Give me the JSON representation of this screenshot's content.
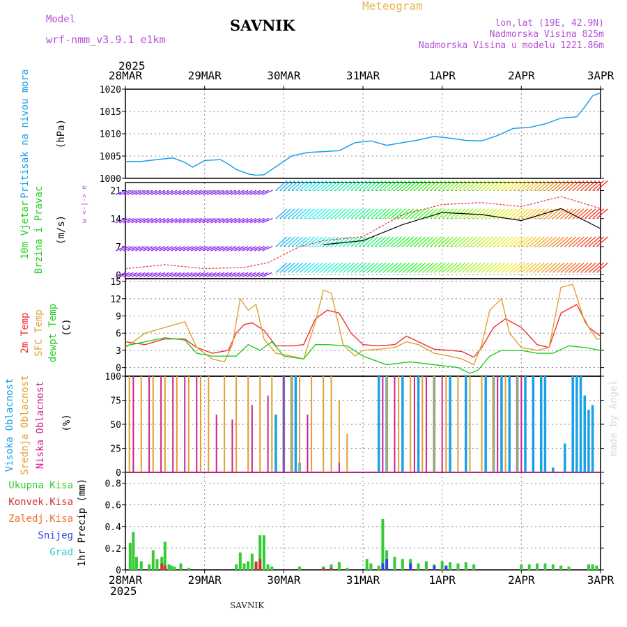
{
  "header": {
    "model_label": "Model",
    "model_name": "wrf-nmm_v3.9.1 e1km",
    "station": "SAVNIK",
    "chart_kind": "Meteogram",
    "lonlat": "lon,lat (19E, 42.9N)",
    "altitude": "Nadmorska Visina 825m",
    "model_altitude": "Nadmorska Visina u modelu 1221.86m",
    "year_top": "2025",
    "year_bottom": "2025",
    "footer_station": "SAVNIK",
    "watermark": "made by Angel"
  },
  "colors": {
    "pressure": "#1aa0e8",
    "wind_green": "#22cc22",
    "temp_2m": "#f03030",
    "temp_sfc": "#e0a030",
    "dewpoint": "#22cc22",
    "cloud_high": "#1aa0e8",
    "cloud_mid": "#e0a030",
    "cloud_low": "#d0208a",
    "precip_total": "#33cc33",
    "precip_conv": "#cc3333",
    "precip_frz": "#f07030",
    "precip_snow": "#3344dd",
    "precip_hail": "#33cccc",
    "purple": "#b84fd8",
    "grid": "#888888"
  },
  "chart_data": [
    {
      "type": "line",
      "panel": "pressure",
      "ylabel_lines": [
        "Pritisak na nivou mora"
      ],
      "unit": "(hPa)",
      "x_ticks": [
        "28MAR",
        "29MAR",
        "30MAR",
        "31MAR",
        "1APR",
        "2APR",
        "3APR"
      ],
      "ylim": [
        1000,
        1020
      ],
      "y_ticks": [
        1000,
        1005,
        1010,
        1015,
        1020
      ],
      "grid": true,
      "series": [
        {
          "color_key": "pressure",
          "x": [
            0,
            0.2,
            0.4,
            0.6,
            0.75,
            0.85,
            1.0,
            1.2,
            1.3,
            1.4,
            1.55,
            1.65,
            1.75,
            1.9,
            2.1,
            2.3,
            2.5,
            2.7,
            2.9,
            3.1,
            3.3,
            3.5,
            3.7,
            3.9,
            4.1,
            4.3,
            4.5,
            4.7,
            4.9,
            5.1,
            5.3,
            5.5,
            5.7,
            5.8,
            5.9,
            6.0
          ],
          "y": [
            1003.8,
            1003.8,
            1004.2,
            1004.6,
            1003.6,
            1002.5,
            1004.0,
            1004.2,
            1003.2,
            1002.0,
            1001.0,
            1000.7,
            1000.8,
            1002.6,
            1005.0,
            1005.8,
            1006.0,
            1006.2,
            1008.0,
            1008.4,
            1007.4,
            1008.0,
            1008.6,
            1009.4,
            1009.0,
            1008.5,
            1008.4,
            1009.6,
            1011.2,
            1011.4,
            1012.2,
            1013.5,
            1013.8,
            1016.0,
            1018.5,
            1019.2
          ]
        }
      ]
    },
    {
      "type": "line",
      "panel": "wind",
      "ylabel_lines": [
        "10m Vjetar",
        "Brzina i Pravac"
      ],
      "unit": "(m/s)",
      "direction_legend": "w <-|-> e",
      "ylim": [
        -1,
        23
      ],
      "y_ticks": [
        0,
        7,
        14,
        21
      ],
      "grid": true,
      "series": [
        {
          "name": "",
          "color_key": "purple",
          "x": [
            0,
            0.5,
            1.0,
            1.5,
            1.8,
            2.2,
            2.5,
            3.0,
            3.5,
            4.0,
            4.5,
            5.0,
            5.5,
            6.0
          ],
          "y": [
            1.5,
            2.5,
            1.5,
            1.8,
            3.0,
            7.0,
            8.5,
            9.5,
            15.0,
            17.5,
            18.0,
            17.0,
            19.5,
            16.5
          ]
        },
        {
          "name": "",
          "color_key": "pressure",
          "x": [
            2.5,
            3.0,
            3.5,
            4.0,
            4.5,
            5.0,
            5.5,
            6.0
          ],
          "y": [
            7.5,
            8.5,
            12.5,
            15.5,
            15.0,
            13.5,
            16.5,
            11.5
          ]
        }
      ]
    },
    {
      "type": "line",
      "panel": "temperature",
      "legend_lines": [
        "2m Temp",
        "SFC Temp",
        "dewpt Temp"
      ],
      "unit": "(C)",
      "ylim": [
        -1.5,
        15.5
      ],
      "y_ticks": [
        0,
        3,
        6,
        9,
        12,
        15
      ],
      "grid": true,
      "series": [
        {
          "name": "2m Temp",
          "color_key": "temp_2m",
          "x": [
            0,
            0.25,
            0.5,
            0.75,
            0.9,
            1.1,
            1.3,
            1.4,
            1.5,
            1.6,
            1.75,
            1.9,
            2.1,
            2.25,
            2.4,
            2.55,
            2.7,
            2.85,
            3.0,
            3.2,
            3.4,
            3.55,
            3.7,
            3.9,
            4.1,
            4.25,
            4.4,
            4.5,
            4.65,
            4.8,
            5.0,
            5.2,
            5.35,
            5.5,
            5.7,
            5.85,
            6.0
          ],
          "y": [
            4.5,
            4.0,
            5.0,
            5.0,
            3.5,
            2.5,
            3.0,
            6.0,
            7.5,
            7.8,
            6.5,
            3.8,
            3.8,
            4.0,
            8.5,
            10.0,
            9.5,
            6.0,
            4.0,
            3.8,
            4.0,
            5.5,
            4.5,
            3.2,
            3.0,
            2.8,
            1.8,
            3.5,
            7.0,
            8.5,
            7.0,
            4.0,
            3.5,
            9.5,
            11.0,
            7.0,
            5.5
          ]
        },
        {
          "name": "SFC Temp",
          "color_key": "temp_sfc",
          "x": [
            0,
            0.25,
            0.5,
            0.75,
            0.9,
            1.1,
            1.25,
            1.35,
            1.45,
            1.55,
            1.65,
            1.75,
            1.9,
            2.1,
            2.25,
            2.4,
            2.5,
            2.6,
            2.75,
            2.9,
            3.0,
            3.2,
            3.4,
            3.55,
            3.7,
            3.9,
            4.1,
            4.25,
            4.4,
            4.5,
            4.6,
            4.75,
            4.85,
            5.0,
            5.2,
            5.35,
            5.5,
            5.65,
            5.8,
            5.95,
            6.0
          ],
          "y": [
            3.5,
            6.0,
            7.0,
            8.0,
            3.5,
            1.5,
            1.0,
            4.0,
            12.0,
            10.0,
            11.0,
            5.0,
            2.5,
            2.0,
            1.5,
            8.0,
            13.5,
            13.0,
            4.0,
            2.0,
            3.0,
            3.2,
            3.5,
            4.5,
            4.0,
            2.5,
            2.0,
            1.5,
            0.5,
            4.0,
            10.0,
            12.0,
            6.0,
            3.5,
            3.0,
            3.5,
            14.0,
            14.5,
            8.0,
            5.0,
            5.0
          ]
        },
        {
          "name": "dewpt Temp",
          "color_key": "dewpoint",
          "x": [
            0,
            0.25,
            0.5,
            0.75,
            0.9,
            1.1,
            1.4,
            1.55,
            1.7,
            1.85,
            2.0,
            2.25,
            2.4,
            2.55,
            2.8,
            3.0,
            3.3,
            3.6,
            3.9,
            4.2,
            4.35,
            4.45,
            4.6,
            4.75,
            5.0,
            5.2,
            5.4,
            5.6,
            5.8,
            6.0
          ],
          "y": [
            3.8,
            4.5,
            5.2,
            4.8,
            2.5,
            2.0,
            2.0,
            4.0,
            3.0,
            4.5,
            2.0,
            1.5,
            4.0,
            4.0,
            3.8,
            2.0,
            0.5,
            1.0,
            0.5,
            0.0,
            -1.0,
            -0.5,
            2.0,
            3.0,
            3.0,
            2.5,
            2.5,
            3.8,
            3.5,
            3.0
          ]
        }
      ]
    },
    {
      "type": "bar",
      "panel": "clouds",
      "legend_lines": [
        "Visoka Oblacnost",
        "Srednja Oblacnost",
        "Niska Oblacnost"
      ],
      "unit": "(%)",
      "ylim": [
        0,
        100
      ],
      "y_ticks": [
        0,
        25,
        50,
        75,
        100
      ],
      "grid": true,
      "series": [
        {
          "name": "Visoka Oblacnost",
          "color_key": "cloud_high",
          "x": [
            1.9,
            2.0,
            2.1,
            2.15,
            2.2,
            3.2,
            3.3,
            3.5,
            3.7,
            3.9,
            4.1,
            4.3,
            4.55,
            4.65,
            4.75,
            4.85,
            4.95,
            5.05,
            5.15,
            5.25,
            5.3,
            5.4,
            5.55,
            5.65,
            5.7,
            5.75,
            5.8,
            5.85,
            5.9
          ],
          "values": [
            60,
            100,
            100,
            100,
            10,
            100,
            100,
            100,
            100,
            100,
            100,
            100,
            100,
            100,
            100,
            100,
            100,
            100,
            100,
            100,
            100,
            5,
            30,
            100,
            100,
            100,
            80,
            65,
            70
          ]
        },
        {
          "name": "Srednja Oblacnost",
          "color_key": "cloud_mid",
          "x": [
            0.05,
            0.2,
            0.35,
            0.5,
            0.65,
            0.8,
            0.95,
            1.05,
            1.25,
            1.4,
            1.55,
            1.7,
            1.85,
            2.0,
            2.1,
            2.2,
            2.35,
            2.5,
            2.6,
            2.7,
            2.8,
            3.3,
            3.45,
            3.6,
            3.75,
            3.9,
            4.05,
            4.2,
            4.35,
            4.5,
            4.65,
            4.8,
            4.95
          ],
          "values": [
            100,
            100,
            100,
            100,
            100,
            100,
            100,
            100,
            100,
            100,
            100,
            100,
            100,
            100,
            100,
            100,
            100,
            100,
            100,
            75,
            40,
            100,
            100,
            100,
            100,
            100,
            100,
            100,
            100,
            100,
            100,
            100,
            100
          ]
        },
        {
          "name": "Niska Oblacnost",
          "color_key": "cloud_low",
          "x": [
            0.1,
            0.3,
            0.45,
            0.6,
            0.75,
            0.9,
            1.15,
            1.35,
            1.6,
            1.8,
            2.0,
            2.3,
            2.7,
            3.25,
            3.4,
            3.65,
            3.8,
            4.0,
            4.7,
            5.0
          ],
          "values": [
            100,
            100,
            100,
            100,
            100,
            100,
            60,
            55,
            70,
            80,
            100,
            60,
            10,
            100,
            100,
            100,
            100,
            100,
            100,
            100
          ]
        }
      ]
    },
    {
      "type": "bar",
      "panel": "precip",
      "legend_lines": [
        "Ukupna Kisa",
        "Konvek.Kisa",
        "Zaledj.Kisa",
        "Snijeg",
        "Grad"
      ],
      "unit": "1hr Precip (mm)",
      "ylim": [
        0,
        0.9
      ],
      "y_ticks": [
        0,
        0.2,
        0.4,
        0.6,
        0.8
      ],
      "grid": true,
      "series": [
        {
          "name": "Ukupna Kisa",
          "color_key": "precip_total",
          "x": [
            0.06,
            0.1,
            0.14,
            0.2,
            0.3,
            0.35,
            0.4,
            0.46,
            0.5,
            0.55,
            0.58,
            0.62,
            0.7,
            0.8,
            1.4,
            1.45,
            1.5,
            1.55,
            1.6,
            1.65,
            1.7,
            1.75,
            1.8,
            1.85,
            2.2,
            2.5,
            2.6,
            2.7,
            2.8,
            3.05,
            3.1,
            3.2,
            3.25,
            3.3,
            3.4,
            3.5,
            3.6,
            3.7,
            3.8,
            3.9,
            4.0,
            4.1,
            4.2,
            4.3,
            4.4,
            5.0,
            5.1,
            5.2,
            5.3,
            5.4,
            5.5,
            5.6,
            5.85,
            5.9,
            5.95
          ],
          "values": [
            0.25,
            0.35,
            0.12,
            0.08,
            0.05,
            0.18,
            0.1,
            0.12,
            0.26,
            0.05,
            0.04,
            0.03,
            0.06,
            0.02,
            0.05,
            0.16,
            0.06,
            0.08,
            0.15,
            0.08,
            0.32,
            0.32,
            0.05,
            0.03,
            0.03,
            0.03,
            0.05,
            0.07,
            0.02,
            0.1,
            0.06,
            0.04,
            0.47,
            0.18,
            0.12,
            0.1,
            0.1,
            0.06,
            0.08,
            0.05,
            0.08,
            0.07,
            0.06,
            0.07,
            0.05,
            0.05,
            0.05,
            0.06,
            0.06,
            0.05,
            0.04,
            0.03,
            0.05,
            0.05,
            0.04
          ]
        },
        {
          "name": "Konvek.Kisa",
          "color_key": "precip_conv",
          "x": [
            0.46,
            0.5,
            1.65,
            1.7,
            2.5,
            2.6
          ],
          "values": [
            0.06,
            0.04,
            0.07,
            0.1,
            0.02,
            0.02
          ]
        },
        {
          "name": "Snijeg",
          "color_key": "precip_snow",
          "x": [
            3.25,
            3.3,
            3.6,
            3.9,
            4.05
          ],
          "values": [
            0.06,
            0.1,
            0.06,
            0.04,
            0.04
          ]
        }
      ]
    }
  ]
}
